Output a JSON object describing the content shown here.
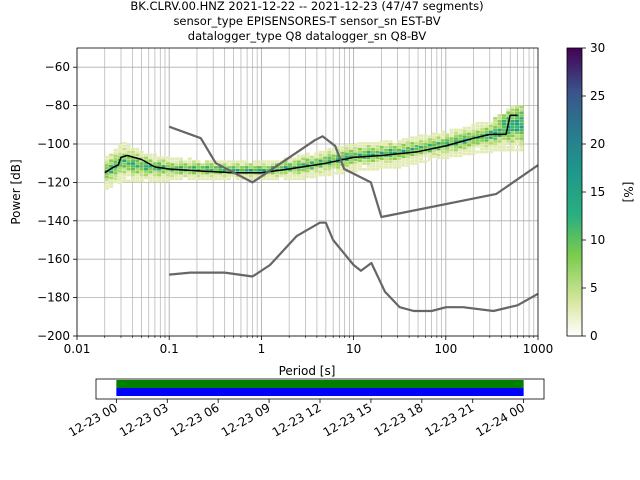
{
  "title": {
    "line1": "BK.CLRV.00.HNZ   2021-12-22 -- 2021-12-23  (47/47 segments)",
    "line2": "sensor_type EPISENSORES-T sensor_sn EST-BV",
    "line3": "datalogger_type Q8 datalogger_sn Q8-BV"
  },
  "colors": {
    "median": "#000000",
    "noise_models": "#666666",
    "grid": "#b0b0b0",
    "timeline_data": "#0000ff",
    "timeline_gaps": "#008000"
  },
  "chart_data": [
    {
      "type": "heatmap",
      "title": "BK.CLRV.00.HNZ   2021-12-22 -- 2021-12-23  (47/47 segments)",
      "xlabel": "Period [s]",
      "ylabel": "Power [dB]",
      "xscale": "log",
      "xlim": [
        0.01,
        1000
      ],
      "ylim": [
        -200,
        -50
      ],
      "xticks": [
        0.01,
        0.1,
        1,
        10,
        100,
        1000
      ],
      "xtick_labels": [
        "0.01",
        "0.1",
        "1",
        "10",
        "100",
        "1000"
      ],
      "yticks": [
        -200,
        -180,
        -160,
        -140,
        -120,
        -100,
        -80,
        -60
      ],
      "ytick_labels": [
        "−200",
        "−180",
        "−160",
        "−140",
        "−120",
        "−100",
        "−80",
        "−60"
      ],
      "grid": true,
      "colorbar": {
        "label": "[%]",
        "range": [
          0,
          30
        ],
        "ticks": [
          0,
          5,
          10,
          15,
          20,
          25,
          30
        ],
        "tick_labels": [
          "0",
          "5",
          "10",
          "15",
          "20",
          "25",
          "30"
        ],
        "colormap": "viridis_r with white low end"
      },
      "series": [
        {
          "name": "median",
          "x": [
            0.02,
            0.025,
            0.028,
            0.03,
            0.035,
            0.05,
            0.07,
            0.1,
            0.2,
            0.5,
            1,
            2,
            5,
            10,
            20,
            50,
            100,
            200,
            300,
            400,
            450,
            500,
            600
          ],
          "y": [
            -115,
            -112,
            -111,
            -107,
            -106,
            -108,
            -112,
            -113,
            -114,
            -115,
            -115,
            -113,
            -110,
            -107,
            -106,
            -104,
            -101,
            -97,
            -95,
            -95,
            -95,
            -85,
            -85
          ]
        },
        {
          "name": "NHNM",
          "x": [
            0.1,
            0.22,
            0.32,
            0.8,
            3.8,
            4.6,
            6.3,
            7.9,
            15.4,
            20,
            354,
            1000
          ],
          "y": [
            -91,
            -97,
            -110,
            -120,
            -98,
            -96,
            -101,
            -113,
            -120,
            -138,
            -126,
            -111
          ]
        },
        {
          "name": "NLNM",
          "x": [
            0.1,
            0.17,
            0.4,
            0.8,
            1.24,
            2.4,
            4.3,
            5,
            6,
            10,
            12,
            15.6,
            21.9,
            31.6,
            45,
            70,
            101,
            154,
            328,
            600,
            1000
          ],
          "y": [
            -168,
            -167,
            -167,
            -169,
            -163,
            -148,
            -141,
            -141,
            -150,
            -163,
            -166,
            -162,
            -177,
            -185,
            -187,
            -187,
            -185,
            -185,
            -187,
            -184,
            -178
          ]
        }
      ],
      "density": {
        "description": "PPSD probability density around the median",
        "periods": [
          0.02,
          0.03,
          0.05,
          0.1,
          0.3,
          1,
          3,
          10,
          30,
          100,
          300,
          500,
          700
        ],
        "power_min": [
          -124,
          -120,
          -120,
          -119,
          -119,
          -119,
          -118,
          -114,
          -112,
          -107,
          -104,
          -104,
          -104
        ],
        "power_max": [
          -106,
          -100,
          -105,
          -108,
          -109,
          -110,
          -106,
          -100,
          -98,
          -94,
          -88,
          -80,
          -80
        ]
      }
    },
    {
      "type": "bar",
      "description": "data availability timeline",
      "xtick_labels": [
        "12-23 00",
        "12-23 03",
        "12-23 06",
        "12-23 09",
        "12-23 12",
        "12-23 15",
        "12-23 18",
        "12-23 21",
        "12-24 00"
      ],
      "xlim_hours": [
        -1.2,
        25.2
      ],
      "series": [
        {
          "color": "green",
          "start_hour": 0,
          "end_hour": 24
        },
        {
          "color": "blue",
          "start_hour": 0,
          "end_hour": 24
        }
      ]
    }
  ]
}
